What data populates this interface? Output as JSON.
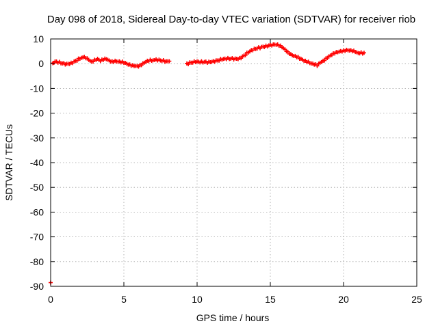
{
  "chart_data": {
    "type": "scatter",
    "title": "Day 098 of 2018, Sidereal Day-to-day VTEC variation (SDTVAR) for receiver riob",
    "xlabel": "GPS time / hours",
    "ylabel": "SDTVAR / TECUs",
    "xlim": [
      0,
      25
    ],
    "ylim": [
      -90,
      10
    ],
    "xticks": [
      0,
      5,
      10,
      15,
      20,
      25
    ],
    "yticks": [
      10,
      0,
      -10,
      -20,
      -30,
      -40,
      -50,
      -60,
      -70,
      -80,
      -90
    ],
    "grid": true,
    "color": "#ff0000",
    "marker": "+",
    "series": [
      {
        "name": "SDTVAR",
        "x": [
          0.0,
          0.15,
          0.3,
          0.5,
          0.8,
          1.1,
          1.4,
          1.7,
          2.0,
          2.2,
          2.4,
          2.6,
          2.8,
          3.0,
          3.2,
          3.4,
          3.6,
          3.8,
          4.0,
          4.2,
          4.4,
          4.6,
          4.8,
          5.0,
          5.2,
          5.4,
          5.6,
          5.8,
          6.0,
          6.2,
          6.4,
          6.6,
          6.8,
          7.0,
          7.3,
          7.6,
          7.9,
          8.1,
          9.3,
          9.6,
          9.9,
          10.2,
          10.5,
          10.8,
          11.1,
          11.4,
          11.7,
          12.0,
          12.3,
          12.6,
          12.9,
          13.2,
          13.5,
          13.8,
          14.1,
          14.4,
          14.7,
          15.0,
          15.2,
          15.4,
          15.6,
          15.8,
          16.0,
          16.2,
          16.4,
          16.6,
          16.8,
          17.0,
          17.2,
          17.4,
          17.6,
          17.8,
          18.0,
          18.2,
          18.4,
          18.6,
          18.8,
          19.0,
          19.2,
          19.4,
          19.6,
          19.8,
          20.0,
          20.2,
          20.4,
          20.6,
          20.8,
          21.0,
          21.2,
          21.4
        ],
        "y": [
          -88.5,
          0.2,
          0.9,
          0.4,
          0.1,
          0.0,
          0.4,
          1.2,
          2.0,
          2.5,
          2.2,
          1.5,
          0.9,
          1.6,
          2.0,
          1.1,
          1.5,
          1.8,
          1.3,
          1.0,
          1.2,
          0.8,
          0.5,
          0.3,
          0.0,
          -0.3,
          -0.6,
          -0.9,
          -1.2,
          -0.6,
          0.4,
          1.2,
          1.6,
          1.4,
          1.3,
          1.1,
          1.0,
          1.0,
          0.1,
          0.4,
          0.6,
          0.5,
          0.7,
          0.8,
          1.1,
          1.3,
          1.6,
          1.8,
          2.0,
          2.1,
          2.3,
          3.3,
          4.5,
          5.4,
          6.1,
          6.8,
          7.3,
          7.6,
          7.8,
          7.6,
          7.2,
          6.6,
          5.8,
          4.8,
          3.9,
          3.1,
          2.6,
          2.0,
          1.6,
          1.2,
          0.8,
          0.1,
          -0.4,
          -0.9,
          0.4,
          1.2,
          2.2,
          3.0,
          3.5,
          4.1,
          4.6,
          5.1,
          5.4,
          5.6,
          5.3,
          5.0,
          4.7,
          4.3,
          4.6,
          4.4
        ]
      }
    ]
  }
}
